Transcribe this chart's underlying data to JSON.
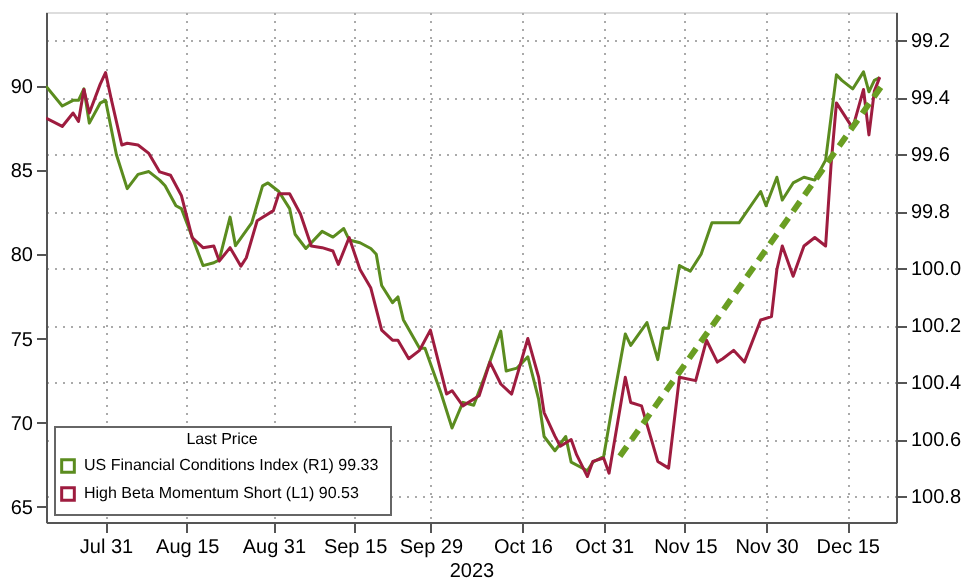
{
  "chart_data": {
    "type": "line",
    "xlabel": "2023",
    "legend_title": "Last Price",
    "legend": "bottom left",
    "grid": true,
    "line_style": "solid",
    "xlim": [
      "2023-07-20",
      "2023-12-24"
    ],
    "xticks": [
      {
        "value": "2023-07-31",
        "label": "Jul 31"
      },
      {
        "value": "2023-08-15",
        "label": "Aug 15"
      },
      {
        "value": "2023-08-31",
        "label": "Aug 31"
      },
      {
        "value": "2023-09-15",
        "label": "Sep 15"
      },
      {
        "value": "2023-09-29",
        "label": "Sep 29"
      },
      {
        "value": "2023-10-16",
        "label": "Oct 16"
      },
      {
        "value": "2023-10-31",
        "label": "Oct 31"
      },
      {
        "value": "2023-11-15",
        "label": "Nov 15"
      },
      {
        "value": "2023-11-30",
        "label": "Nov 30"
      },
      {
        "value": "2023-12-15",
        "label": "Dec 15"
      }
    ],
    "ylim": [
      64.1,
      94.4
    ],
    "yticks": [
      65,
      70,
      75,
      80,
      85,
      90
    ],
    "y2lim": [
      100.89,
      99.1
    ],
    "y2ticks": [
      99.2,
      99.4,
      99.6,
      99.8,
      {
        "value": 100.0,
        "label": "100.0"
      },
      100.2,
      100.4,
      100.6,
      100.8
    ],
    "series": [
      {
        "name": "US Financial Conditions Index (R1)  99.33",
        "color": "#5b8c1f",
        "axis": "y2",
        "x": [
          "2023-07-20",
          "2023-07-23",
          "2023-07-25",
          "2023-07-26",
          "2023-07-27",
          "2023-07-28",
          "2023-07-30",
          "2023-07-31",
          "2023-08-02",
          "2023-08-04",
          "2023-08-06",
          "2023-08-08",
          "2023-08-10",
          "2023-08-11",
          "2023-08-13",
          "2023-08-14",
          "2023-08-18",
          "2023-08-20",
          "2023-08-21",
          "2023-08-23",
          "2023-08-24",
          "2023-08-27",
          "2023-08-29",
          "2023-08-30",
          "2023-09-01",
          "2023-09-03",
          "2023-09-04",
          "2023-09-06",
          "2023-09-09",
          "2023-09-11",
          "2023-09-13",
          "2023-09-14",
          "2023-09-16",
          "2023-09-18",
          "2023-09-19",
          "2023-09-20",
          "2023-09-22",
          "2023-09-23",
          "2023-09-24",
          "2023-09-27",
          "2023-09-28",
          "2023-10-01",
          "2023-10-03",
          "2023-10-05",
          "2023-10-07",
          "2023-10-09",
          "2023-10-12",
          "2023-10-13",
          "2023-10-15",
          "2023-10-17",
          "2023-10-19",
          "2023-10-20",
          "2023-10-22",
          "2023-10-24",
          "2023-10-25",
          "2023-10-28",
          "2023-10-29",
          "2023-10-31",
          "2023-11-02",
          "2023-11-04",
          "2023-11-05",
          "2023-11-08",
          "2023-11-10",
          "2023-11-11",
          "2023-11-12",
          "2023-11-14",
          "2023-11-16",
          "2023-11-18",
          "2023-11-20",
          "2023-11-22",
          "2023-11-25",
          "2023-11-29",
          "2023-11-30",
          "2023-12-02",
          "2023-12-03",
          "2023-12-05",
          "2023-12-07",
          "2023-12-09",
          "2023-12-11",
          "2023-12-13",
          "2023-12-14",
          "2023-12-16",
          "2023-12-18",
          "2023-12-19",
          "2023-12-20",
          "2023-12-21"
        ],
        "values": [
          99.36,
          99.43,
          99.41,
          99.41,
          99.37,
          99.49,
          99.42,
          99.41,
          99.6,
          99.72,
          99.67,
          99.66,
          99.69,
          99.71,
          99.78,
          99.79,
          99.99,
          99.98,
          99.97,
          99.82,
          99.92,
          99.84,
          99.71,
          99.7,
          99.73,
          99.79,
          99.88,
          99.93,
          99.87,
          99.89,
          99.86,
          99.9,
          99.91,
          99.93,
          99.95,
          100.06,
          100.12,
          100.1,
          100.18,
          100.28,
          100.28,
          100.44,
          100.56,
          100.47,
          100.48,
          100.38,
          100.22,
          100.36,
          100.35,
          100.31,
          100.46,
          100.59,
          100.64,
          100.59,
          100.68,
          100.71,
          100.68,
          100.66,
          100.44,
          100.23,
          100.27,
          100.19,
          100.32,
          100.21,
          100.21,
          99.99,
          100.01,
          99.95,
          99.84,
          99.84,
          99.84,
          99.73,
          99.78,
          99.68,
          99.76,
          99.7,
          99.68,
          99.69,
          99.62,
          99.32,
          99.34,
          99.37,
          99.31,
          99.38,
          99.34,
          99.33
        ]
      },
      {
        "name": "High Beta Momentum Short (L1)  90.53",
        "color": "#9e1c3f",
        "axis": "y",
        "x": [
          "2023-07-20",
          "2023-07-23",
          "2023-07-25",
          "2023-07-26",
          "2023-07-27",
          "2023-07-28",
          "2023-07-30",
          "2023-07-31",
          "2023-08-01",
          "2023-08-03",
          "2023-08-04",
          "2023-08-06",
          "2023-08-08",
          "2023-08-10",
          "2023-08-12",
          "2023-08-14",
          "2023-08-16",
          "2023-08-18",
          "2023-08-20",
          "2023-08-21",
          "2023-08-23",
          "2023-08-25",
          "2023-08-26",
          "2023-08-28",
          "2023-08-31",
          "2023-09-01",
          "2023-09-03",
          "2023-09-05",
          "2023-09-07",
          "2023-09-09",
          "2023-09-11",
          "2023-09-12",
          "2023-09-14",
          "2023-09-16",
          "2023-09-18",
          "2023-09-20",
          "2023-09-22",
          "2023-09-23",
          "2023-09-25",
          "2023-09-27",
          "2023-09-29",
          "2023-10-02",
          "2023-10-03",
          "2023-10-05",
          "2023-10-08",
          "2023-10-10",
          "2023-10-12",
          "2023-10-14",
          "2023-10-17",
          "2023-10-19",
          "2023-10-20",
          "2023-10-22",
          "2023-10-23",
          "2023-10-25",
          "2023-10-26",
          "2023-10-28",
          "2023-10-29",
          "2023-10-31",
          "2023-11-01",
          "2023-11-04",
          "2023-11-05",
          "2023-11-07",
          "2023-11-10",
          "2023-11-12",
          "2023-11-14",
          "2023-11-17",
          "2023-11-19",
          "2023-11-21",
          "2023-11-22",
          "2023-11-24",
          "2023-11-26",
          "2023-11-29",
          "2023-12-01",
          "2023-12-02",
          "2023-12-03",
          "2023-12-05",
          "2023-12-07",
          "2023-12-09",
          "2023-12-11",
          "2023-12-12",
          "2023-12-13",
          "2023-12-16",
          "2023-12-18",
          "2023-12-19",
          "2023-12-20",
          "2023-12-21"
        ],
        "values": [
          88.1,
          87.6,
          88.4,
          87.9,
          89.8,
          88.4,
          90.1,
          90.8,
          89.3,
          86.5,
          86.6,
          86.5,
          86.0,
          84.9,
          84.7,
          83.5,
          81.0,
          80.4,
          80.5,
          79.6,
          80.4,
          79.3,
          79.8,
          82.0,
          82.6,
          83.6,
          83.6,
          82.4,
          80.5,
          80.4,
          80.2,
          79.4,
          81.0,
          79.1,
          78.0,
          75.5,
          74.9,
          74.9,
          73.8,
          74.3,
          75.5,
          71.7,
          71.9,
          71.0,
          71.6,
          73.6,
          72.3,
          71.7,
          75.0,
          72.7,
          70.6,
          69.2,
          68.6,
          69.0,
          68.1,
          66.8,
          67.7,
          67.9,
          67.0,
          72.7,
          71.2,
          71.0,
          67.7,
          67.3,
          72.7,
          72.5,
          74.9,
          73.6,
          73.8,
          74.3,
          73.6,
          76.1,
          76.3,
          79.1,
          80.5,
          78.7,
          80.5,
          81.0,
          80.5,
          85.3,
          89.0,
          87.5,
          89.8,
          87.1,
          89.7,
          90.53
        ]
      },
      {
        "color": "#6a9e22",
        "axis": "y",
        "line_style": "dashed",
        "x": [
          "2023-11-03",
          "2023-12-22"
        ],
        "values": [
          68.0,
          90.3
        ]
      }
    ]
  }
}
